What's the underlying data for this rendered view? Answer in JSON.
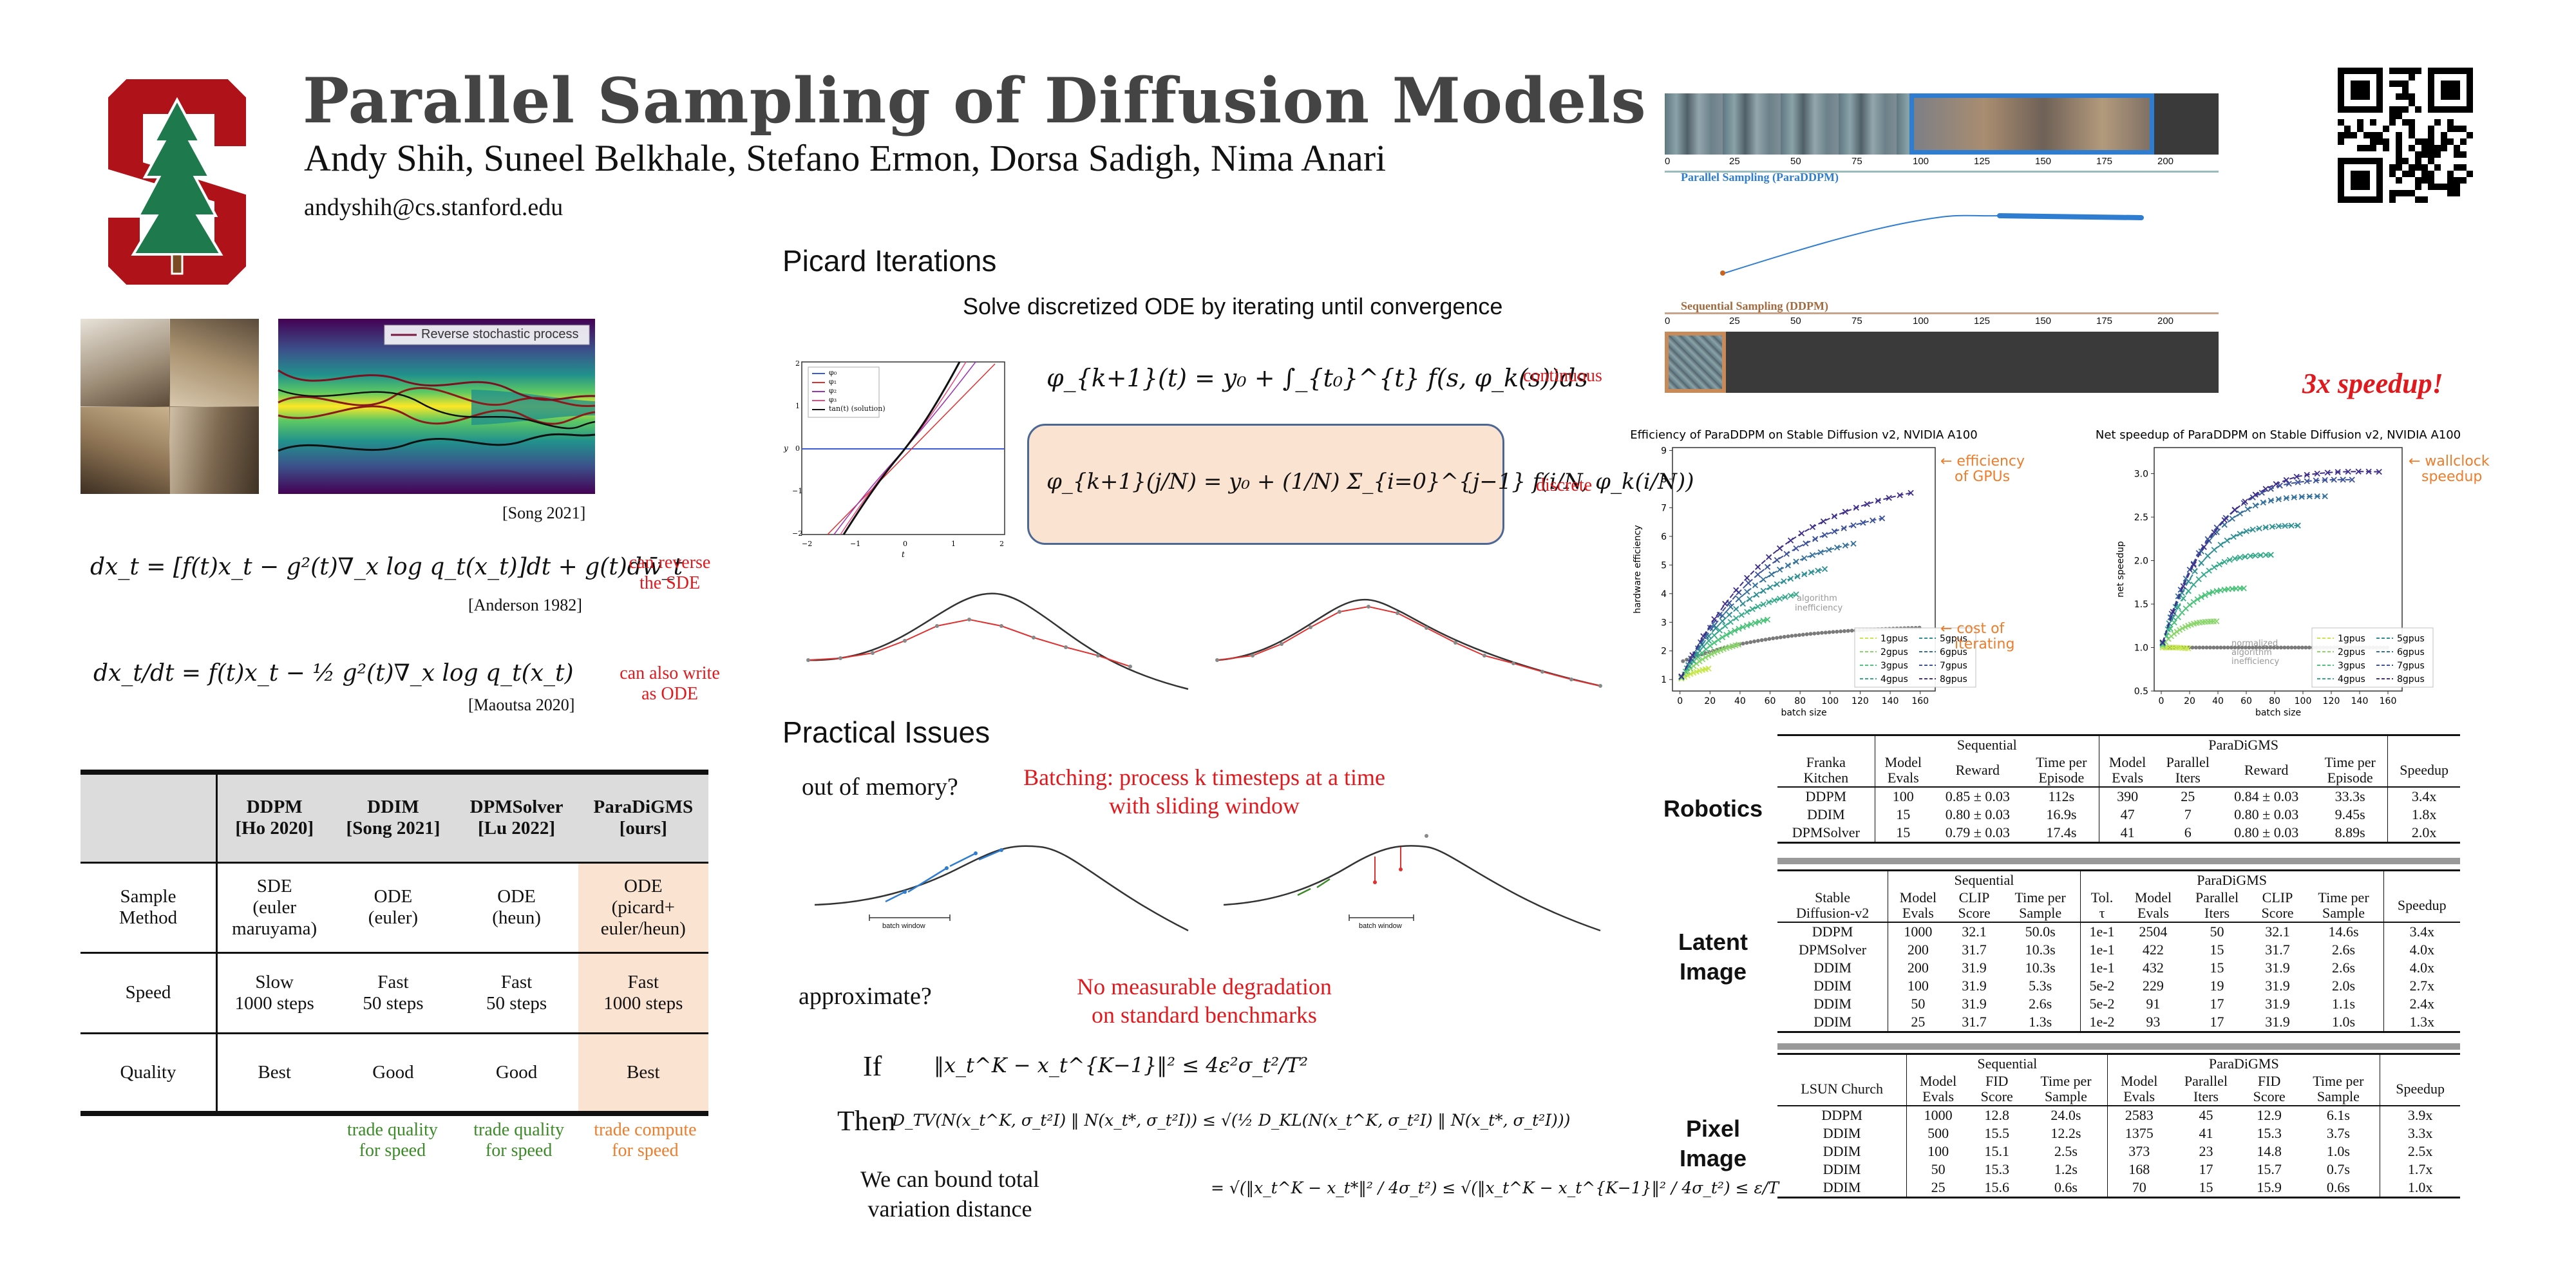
{
  "header": {
    "title": "Parallel Sampling of Diffusion Models",
    "authors": "Andy Shih, Suneel Belkhale, Stefano Ermon, Dorsa Sadigh, Nima Anari",
    "email": "andyshih@cs.stanford.edu"
  },
  "left": {
    "heatmap_legend": "Reverse stochastic process",
    "cite_song": "[Song 2021]",
    "eq_sde": "dx_t = [f(t)x_t − g²(t)∇_x log q_t(x_t)]dt + g(t)dw̄_t",
    "note_sde_1": "can reverse",
    "note_sde_2": "the SDE",
    "cite_anderson": "[Anderson 1982]",
    "eq_ode": "dx_t/dt = f(t)x_t − ½ g²(t)∇_x log q_t(x_t)",
    "note_ode_1": "can also write",
    "note_ode_2": "as ODE",
    "cite_maoutsa": "[Maoutsa 2020]"
  },
  "comparison": {
    "headers": [
      {
        "name": "DDPM",
        "cite": "[Ho 2020]"
      },
      {
        "name": "DDIM",
        "cite": "[Song 2021]"
      },
      {
        "name": "DPMSolver",
        "cite": "[Lu 2022]"
      },
      {
        "name": "ParaDiGMS",
        "cite": "[ours]"
      }
    ],
    "rows": [
      {
        "label": [
          "Sample",
          "Method"
        ],
        "cells": [
          [
            "SDE",
            "(euler",
            "maruyama)"
          ],
          [
            "ODE",
            "(euler)"
          ],
          [
            "ODE",
            "(heun)"
          ],
          [
            "ODE",
            "(picard+",
            "euler/heun)"
          ]
        ]
      },
      {
        "label": [
          "Speed"
        ],
        "cells": [
          [
            "Slow",
            "1000 steps"
          ],
          [
            "Fast",
            "50 steps"
          ],
          [
            "Fast",
            "50 steps"
          ],
          [
            "Fast",
            "1000 steps"
          ]
        ]
      },
      {
        "label": [
          "Quality"
        ],
        "cells": [
          [
            "Best"
          ],
          [
            "Good"
          ],
          [
            "Good"
          ],
          [
            "Best"
          ]
        ]
      }
    ],
    "footer": [
      [
        "",
        ""
      ],
      [
        "trade quality",
        "for speed"
      ],
      [
        "trade quality",
        "for speed"
      ],
      [
        "trade compute",
        "for speed"
      ]
    ],
    "highlight_color": "#fbe3d2"
  },
  "picard": {
    "section_title": "Picard Iterations",
    "subtitle": "Solve discretized ODE by iterating until convergence",
    "plot_legend": [
      "φ₀",
      "φ₁",
      "φ₂",
      "φ₃",
      "tan(t) (solution)"
    ],
    "eq_continuous": "φ_{k+1}(t) = y₀ + ∫_{t₀}^{t} f(s, φ_k(s))ds",
    "label_continuous": "continuous",
    "eq_discrete": "φ_{k+1}(j/N) = y₀ + (1/N) Σ_{i=0}^{j−1} f(i/N, φ_k(i/N))",
    "label_discrete": "discrete"
  },
  "practical": {
    "section_title": "Practical Issues",
    "q_memory": "out of memory?",
    "a_memory_1": "Batching: process k timesteps at a time",
    "a_memory_2": "with sliding window",
    "batch_window": "batch window",
    "q_approx": "approximate?",
    "a_approx_1": "No measurable degradation",
    "a_approx_2": "on standard benchmarks",
    "if": "If",
    "then": "Then",
    "eq_if": "‖x_t^K − x_t^{K−1}‖² ≤ 4ε²σ_t²/T²",
    "eq_then": "D_TV(N(x_t^K, σ_t²I) ‖ N(x_t*, σ_t²I)) ≤ √(½ D_KL(N(x_t^K, σ_t²I) ‖ N(x_t*, σ_t²I)))",
    "eq_then2": "= √(‖x_t^K − x_t*‖² / 4σ_t²) ≤ √(‖x_t^K − x_t^{K−1}‖² / 4σ_t²) ≤ ε/T",
    "bound_1": "We can bound total",
    "bound_2": "variation distance"
  },
  "strip": {
    "ticks": [
      "0",
      "25",
      "50",
      "75",
      "100",
      "125",
      "150",
      "175",
      "200"
    ],
    "parallel_label": "Parallel Sampling (ParaDDPM)",
    "sequential_label": "Sequential Sampling (DDPM)",
    "speedup": "3x speedup!"
  },
  "charts": {
    "left_title": "Efficiency of ParaDDPM on Stable Diffusion v2, NVIDIA A100",
    "left_ylabel": "hardware efficiency",
    "left_xlabel": "batch size",
    "left_yticks": [
      "1",
      "2",
      "3",
      "4",
      "5",
      "6",
      "7",
      "8",
      "9"
    ],
    "left_xticks": [
      "0",
      "20",
      "40",
      "60",
      "80",
      "100",
      "120",
      "140",
      "160"
    ],
    "left_note_1": "← efficiency",
    "left_note_2": "of GPUs",
    "left_note_3": "← cost of",
    "left_note_4": "iterating",
    "left_inner_1": "algorithm",
    "left_inner_2": "inefficiency",
    "right_title": "Net speedup of ParaDDPM on Stable Diffusion v2, NVIDIA A100",
    "right_ylabel": "net speedup",
    "right_xlabel": "batch size",
    "right_yticks": [
      "0.5",
      "1.0",
      "1.5",
      "2.0",
      "2.5",
      "3.0"
    ],
    "right_xticks": [
      "0",
      "20",
      "40",
      "60",
      "80",
      "100",
      "120",
      "140",
      "160"
    ],
    "right_note_1": "← wallclock",
    "right_note_2": "speedup",
    "right_inner_1": "normalized",
    "right_inner_2": "algorithm",
    "right_inner_3": "inefficiency",
    "legend": [
      "1gpus",
      "5gpus",
      "2gpus",
      "6gpus",
      "3gpus",
      "7gpus",
      "4gpus",
      "8gpus"
    ],
    "series_colors": [
      "#c7e84a",
      "#8ad66b",
      "#4cc27a",
      "#35a98a",
      "#2e8f93",
      "#34709a",
      "#3b5199",
      "#3f2f8a"
    ]
  },
  "results": {
    "robotics": {
      "label": "Robotics",
      "group_seq": "Sequential",
      "group_par": "ParaDiGMS",
      "headers": [
        [
          "Franka",
          "Kitchen"
        ],
        [
          "Model",
          "Evals"
        ],
        [
          "Reward"
        ],
        [
          "Time per",
          "Episode"
        ],
        [
          "Model",
          "Evals"
        ],
        [
          "Parallel",
          "Iters"
        ],
        [
          "Reward"
        ],
        [
          "Time per",
          "Episode"
        ],
        [
          "Speedup"
        ]
      ],
      "rows": [
        [
          "DDPM",
          "100",
          "0.85 ± 0.03",
          "112s",
          "390",
          "25",
          "0.84 ± 0.03",
          "33.3s",
          "3.4x"
        ],
        [
          "DDIM",
          "15",
          "0.80 ± 0.03",
          "16.9s",
          "47",
          "7",
          "0.80 ± 0.03",
          "9.45s",
          "1.8x"
        ],
        [
          "DPMSolver",
          "15",
          "0.79 ± 0.03",
          "17.4s",
          "41",
          "6",
          "0.80 ± 0.03",
          "8.89s",
          "2.0x"
        ]
      ]
    },
    "latent": {
      "label_1": "Latent",
      "label_2": "Image",
      "group_seq": "Sequential",
      "group_par": "ParaDiGMS",
      "headers": [
        [
          "Stable",
          "Diffusion-v2"
        ],
        [
          "Model",
          "Evals"
        ],
        [
          "CLIP",
          "Score"
        ],
        [
          "Time per",
          "Sample"
        ],
        [
          "Tol.",
          "τ"
        ],
        [
          "Model",
          "Evals"
        ],
        [
          "Parallel",
          "Iters"
        ],
        [
          "CLIP",
          "Score"
        ],
        [
          "Time per",
          "Sample"
        ],
        [
          "Speedup"
        ]
      ],
      "rows": [
        [
          "DDPM",
          "1000",
          "32.1",
          "50.0s",
          "1e-1",
          "2504",
          "50",
          "32.1",
          "14.6s",
          "3.4x"
        ],
        [
          "DPMSolver",
          "200",
          "31.7",
          "10.3s",
          "1e-1",
          "422",
          "15",
          "31.7",
          "2.6s",
          "4.0x"
        ],
        [
          "DDIM",
          "200",
          "31.9",
          "10.3s",
          "1e-1",
          "432",
          "15",
          "31.9",
          "2.6s",
          "4.0x"
        ],
        [
          "DDIM",
          "100",
          "31.9",
          "5.3s",
          "5e-2",
          "229",
          "19",
          "31.9",
          "2.0s",
          "2.7x"
        ],
        [
          "DDIM",
          "50",
          "31.9",
          "2.6s",
          "5e-2",
          "91",
          "17",
          "31.9",
          "1.1s",
          "2.4x"
        ],
        [
          "DDIM",
          "25",
          "31.7",
          "1.3s",
          "1e-2",
          "93",
          "17",
          "31.9",
          "1.0s",
          "1.3x"
        ]
      ]
    },
    "pixel": {
      "label_1": "Pixel",
      "label_2": "Image",
      "group_seq": "Sequential",
      "group_par": "ParaDiGMS",
      "headers": [
        [
          "LSUN Church"
        ],
        [
          "Model",
          "Evals"
        ],
        [
          "FID",
          "Score"
        ],
        [
          "Time per",
          "Sample"
        ],
        [
          "Model",
          "Evals"
        ],
        [
          "Parallel",
          "Iters"
        ],
        [
          "FID",
          "Score"
        ],
        [
          "Time per",
          "Sample"
        ],
        [
          "Speedup"
        ]
      ],
      "rows": [
        [
          "DDPM",
          "1000",
          "12.8",
          "24.0s",
          "2583",
          "45",
          "12.9",
          "6.1s",
          "3.9x"
        ],
        [
          "DDIM",
          "500",
          "15.5",
          "12.2s",
          "1375",
          "41",
          "15.3",
          "3.7s",
          "3.3x"
        ],
        [
          "DDIM",
          "100",
          "15.1",
          "2.5s",
          "373",
          "23",
          "14.8",
          "1.0s",
          "2.5x"
        ],
        [
          "DDIM",
          "50",
          "15.3",
          "1.2s",
          "168",
          "17",
          "15.7",
          "0.7s",
          "1.7x"
        ],
        [
          "DDIM",
          "25",
          "15.6",
          "0.6s",
          "70",
          "15",
          "15.9",
          "0.6s",
          "1.0x"
        ]
      ]
    }
  }
}
